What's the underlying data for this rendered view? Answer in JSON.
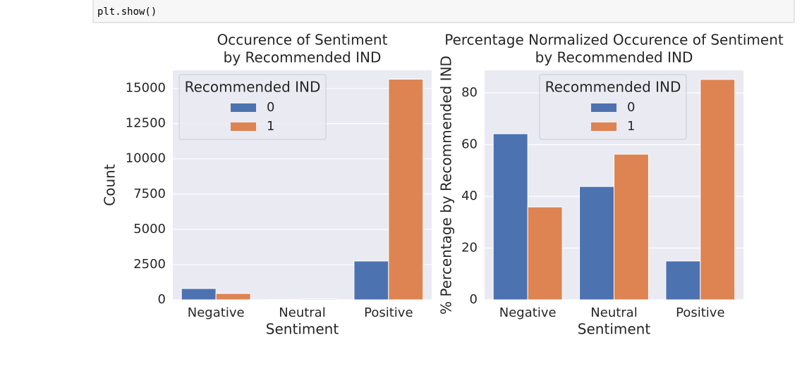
{
  "code": [
    "plt.show()"
  ],
  "chart_data": [
    {
      "type": "bar",
      "title": [
        "Occurence of Sentiment",
        "by Recommended IND"
      ],
      "xlabel": "Sentiment",
      "ylabel": "Count",
      "categories": [
        "Negative",
        "Neutral",
        "Positive"
      ],
      "series": [
        {
          "name": "0",
          "color": "#4c72b0",
          "values": [
            800,
            20,
            2750
          ]
        },
        {
          "name": "1",
          "color": "#dd8452",
          "values": [
            450,
            60,
            15650
          ]
        }
      ],
      "legend_title": "Recommended IND",
      "legend": "upper left",
      "ylim": [
        0,
        16275
      ],
      "yticks": [
        0,
        2500,
        5000,
        7500,
        10000,
        12500,
        15000
      ],
      "grid": true
    },
    {
      "type": "bar",
      "title": [
        "Percentage Normalized Occurence of Sentiment",
        "by Recommended IND"
      ],
      "xlabel": "Sentiment",
      "ylabel": "% Percentage by Recommended IND",
      "categories": [
        "Negative",
        "Neutral",
        "Positive"
      ],
      "series": [
        {
          "name": "0",
          "color": "#4c72b0",
          "values": [
            64.2,
            43.8,
            15
          ]
        },
        {
          "name": "1",
          "color": "#dd8452",
          "values": [
            35.9,
            56.3,
            85.2
          ]
        }
      ],
      "legend_title": "Recommended IND",
      "legend": "upper right",
      "ylim": [
        0,
        88.7
      ],
      "yticks": [
        0,
        20,
        40,
        60,
        80
      ],
      "grid": true
    }
  ]
}
